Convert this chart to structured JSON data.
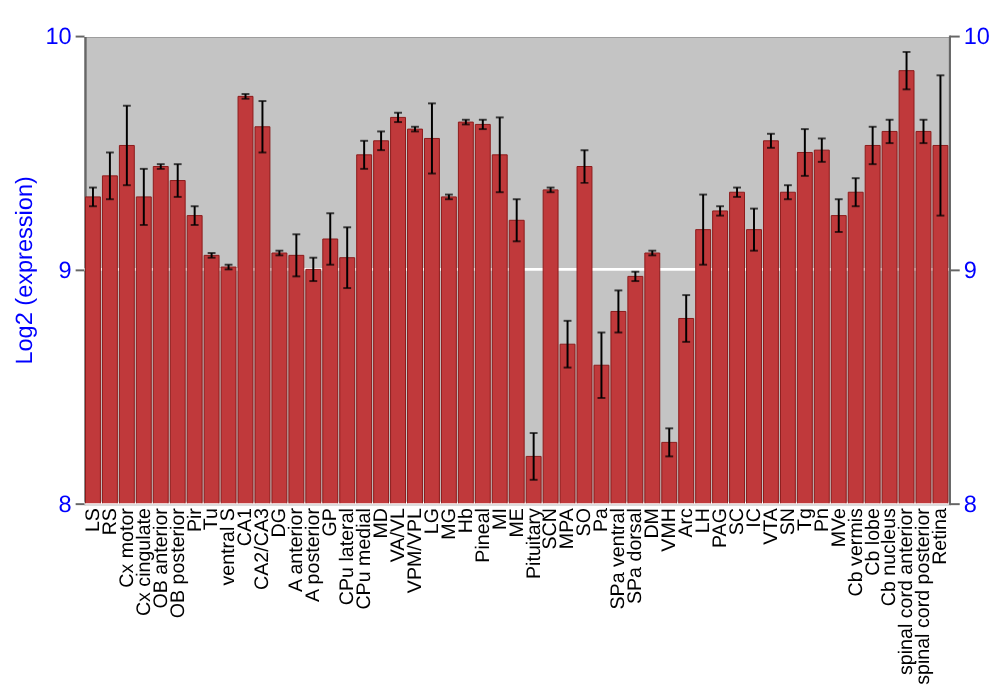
{
  "chart_data": {
    "type": "bar",
    "ylabel": "Log2 (expression)",
    "categories": [
      "LS",
      "RS",
      "Cx motor",
      "Cx cingulate",
      "OB anterior",
      "OB posterior",
      "Pir",
      "Tu",
      "ventral S",
      "CA1",
      "CA2/CA3",
      "DG",
      "A anterior",
      "A posterior",
      "GP",
      "CPu lateral",
      "CPu medial",
      "MD",
      "VA/VL",
      "VPM/VPL",
      "LG",
      "MG",
      "Hb",
      "Pineal",
      "MI",
      "ME",
      "Pituitary",
      "SCN",
      "MPA",
      "SO",
      "Pa",
      "SPa ventral",
      "SPa dorsal",
      "DM",
      "VMH",
      "Arc",
      "LH",
      "PAG",
      "SC",
      "IC",
      "VTA",
      "SN",
      "Tg",
      "Pn",
      "MVe",
      "Cb vermis",
      "Cb lobe",
      "Cb nucleus",
      "spinal cord anterior",
      "spinal cord posterior",
      "Retina"
    ],
    "values": [
      9.31,
      9.4,
      9.53,
      9.31,
      9.44,
      9.38,
      9.23,
      9.06,
      9.01,
      9.74,
      9.61,
      9.07,
      9.06,
      9.0,
      9.13,
      9.05,
      9.49,
      9.55,
      9.65,
      9.6,
      9.56,
      9.31,
      9.63,
      9.62,
      9.49,
      9.21,
      8.2,
      9.34,
      8.68,
      9.44,
      8.59,
      8.82,
      8.97,
      9.07,
      8.26,
      8.79,
      9.17,
      9.25,
      9.33,
      9.17,
      9.55,
      9.33,
      9.5,
      9.51,
      9.23,
      9.33,
      9.53,
      9.59,
      9.85,
      9.59,
      9.53
    ],
    "errors": [
      0.04,
      0.1,
      0.17,
      0.12,
      0.01,
      0.07,
      0.04,
      0.01,
      0.01,
      0.01,
      0.11,
      0.01,
      0.09,
      0.05,
      0.11,
      0.13,
      0.06,
      0.04,
      0.02,
      0.01,
      0.15,
      0.01,
      0.01,
      0.02,
      0.16,
      0.09,
      0.1,
      0.01,
      0.1,
      0.07,
      0.14,
      0.09,
      0.02,
      0.01,
      0.06,
      0.1,
      0.15,
      0.02,
      0.02,
      0.09,
      0.03,
      0.03,
      0.1,
      0.05,
      0.07,
      0.06,
      0.08,
      0.05,
      0.08,
      0.05,
      0.3
    ],
    "color": "#c0393b",
    "ylim": [
      8,
      10
    ],
    "yticks": [
      8,
      9,
      10
    ],
    "y2lim": [
      8,
      10
    ],
    "y2ticks": [
      8,
      9,
      10
    ],
    "grid": "y"
  }
}
